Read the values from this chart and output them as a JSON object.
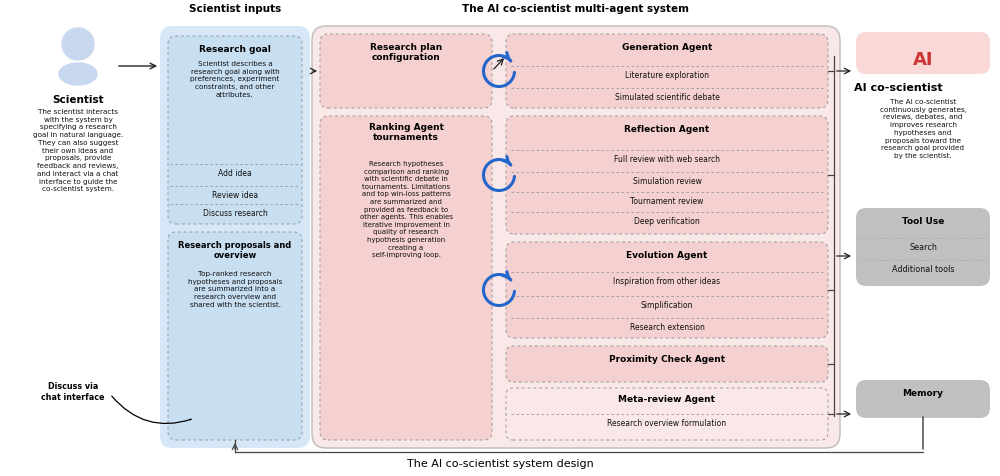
{
  "title": "The AI co-scientist system design",
  "label_scientist_inputs": "Scientist inputs",
  "label_multiagent": "The AI co-scientist multi-agent system",
  "bg_color": "#ffffff",
  "blue_box_color": "#d6e8f7",
  "blue_inner_color": "#c8dff2",
  "pink_outer_color": "#fae8e8",
  "pink_inner_color": "#f5d0d0",
  "gray_box_color": "#c0c0c0",
  "ai_icon_color": "#fad8d8",
  "scientist_icon_color": "#c8d8f0",
  "dot_border": "#999999",
  "arrow_color": "#222222",
  "blue_arrow_color": "#3377cc",
  "red_text_color": "#cc3333"
}
